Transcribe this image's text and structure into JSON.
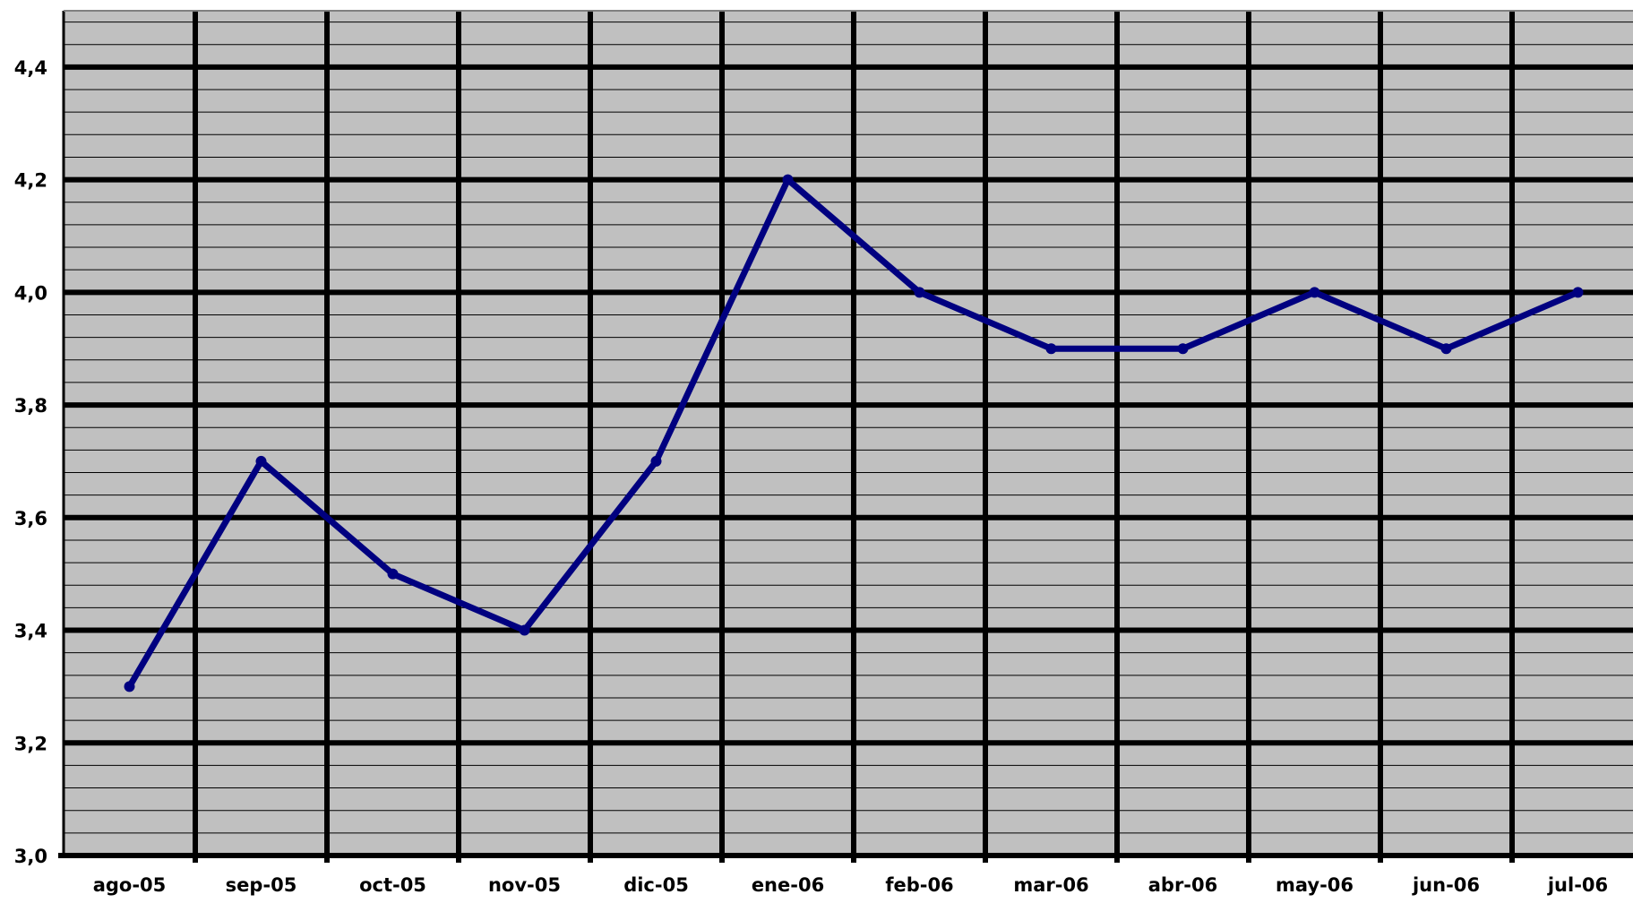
{
  "colors": {
    "plot_background": "#c0c0c0",
    "major_grid": "#000000",
    "minor_grid": "#000000",
    "series_line": "#000080",
    "text": "#000000"
  },
  "chart_data": {
    "type": "line",
    "title": "",
    "xlabel": "",
    "ylabel": "",
    "categories": [
      "ago-05",
      "sep-05",
      "oct-05",
      "nov-05",
      "dic-05",
      "ene-06",
      "feb-06",
      "mar-06",
      "abr-06",
      "may-06",
      "jun-06",
      "jul-06"
    ],
    "series": [
      {
        "values": [
          3.3,
          3.7,
          3.5,
          3.4,
          3.7,
          4.2,
          4.0,
          3.9,
          3.9,
          4.0,
          3.9,
          4.0
        ]
      }
    ],
    "ylim": [
      3.0,
      4.5
    ],
    "y_ticks": [
      3.0,
      3.2,
      3.4,
      3.6,
      3.8,
      4.0,
      4.2,
      4.4
    ],
    "y_tick_labels": [
      "3,0",
      "3,2",
      "3,4",
      "3,6",
      "3,8",
      "4,0",
      "4,2",
      "4,4"
    ],
    "y_minor_step": 0.04,
    "grid": true,
    "legend": "none",
    "markers": "circle"
  }
}
